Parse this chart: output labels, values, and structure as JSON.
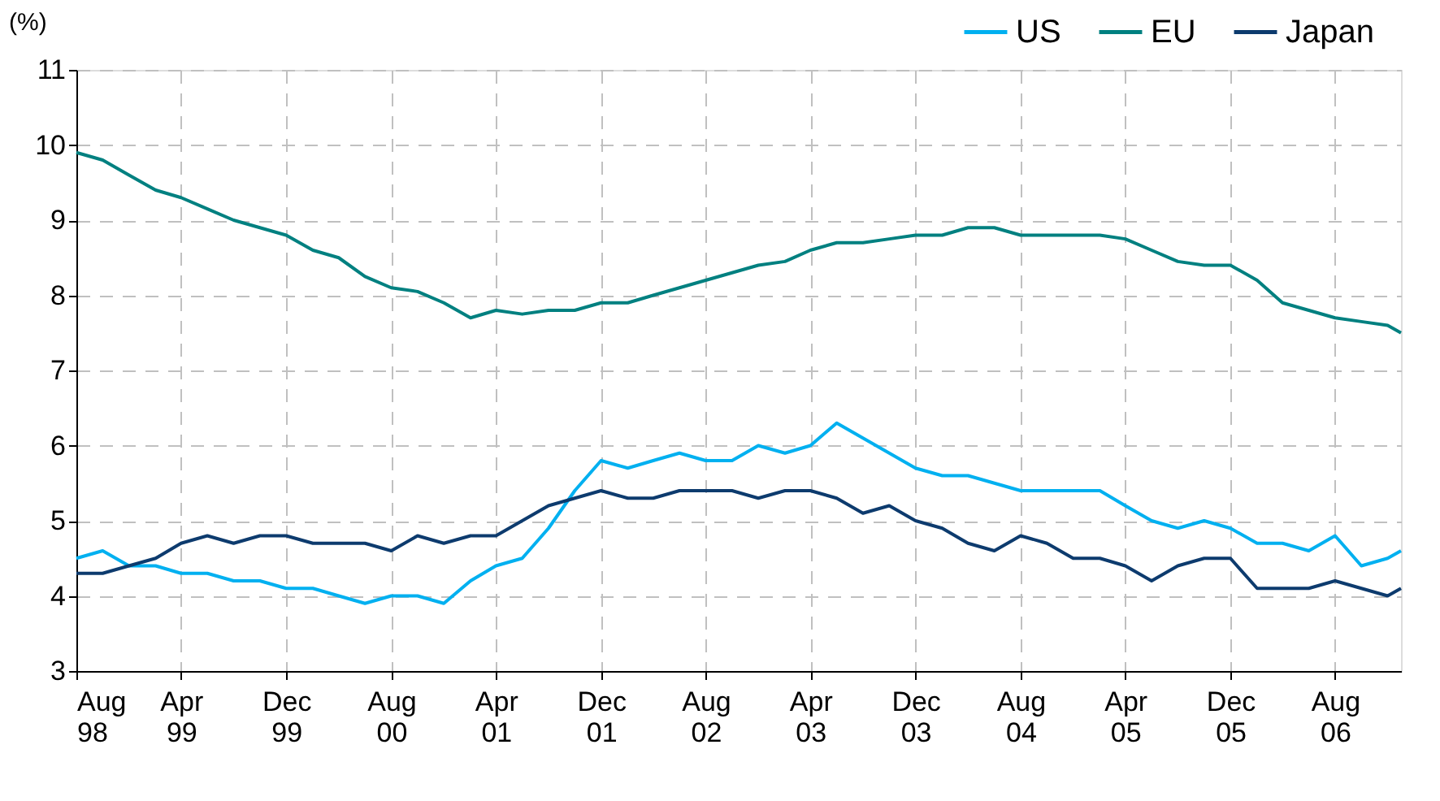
{
  "chart_data": {
    "type": "line",
    "ylabel": "(%)",
    "x": [
      "1998-08",
      "1998-10",
      "1998-12",
      "1999-02",
      "1999-04",
      "1999-06",
      "1999-08",
      "1999-10",
      "1999-12",
      "2000-02",
      "2000-04",
      "2000-06",
      "2000-08",
      "2000-10",
      "2000-12",
      "2001-02",
      "2001-04",
      "2001-06",
      "2001-08",
      "2001-10",
      "2001-12",
      "2002-02",
      "2002-04",
      "2002-06",
      "2002-08",
      "2002-10",
      "2002-12",
      "2003-02",
      "2003-04",
      "2003-06",
      "2003-08",
      "2003-10",
      "2003-12",
      "2004-02",
      "2004-04",
      "2004-06",
      "2004-08",
      "2004-10",
      "2004-12",
      "2005-02",
      "2005-04",
      "2005-06",
      "2005-08",
      "2005-10",
      "2005-12",
      "2006-02",
      "2006-04",
      "2006-06",
      "2006-08",
      "2006-10",
      "2006-12",
      "2007-01"
    ],
    "series": [
      {
        "name": "US",
        "color": "#00b0f0",
        "values": [
          4.5,
          4.6,
          4.4,
          4.4,
          4.3,
          4.3,
          4.2,
          4.2,
          4.1,
          4.1,
          4.0,
          3.9,
          4.0,
          4.0,
          3.9,
          4.2,
          4.4,
          4.5,
          4.9,
          5.4,
          5.8,
          5.7,
          5.8,
          5.9,
          5.8,
          5.8,
          6.0,
          5.9,
          6.0,
          6.3,
          6.1,
          5.9,
          5.7,
          5.6,
          5.6,
          5.5,
          5.4,
          5.4,
          5.4,
          5.4,
          5.2,
          5.0,
          4.9,
          5.0,
          4.9,
          4.7,
          4.7,
          4.6,
          4.8,
          4.4,
          4.5,
          4.6
        ]
      },
      {
        "name": "EU",
        "color": "#008080",
        "values": [
          9.9,
          9.8,
          9.6,
          9.4,
          9.3,
          9.15,
          9.0,
          8.9,
          8.8,
          8.6,
          8.5,
          8.25,
          8.1,
          8.05,
          7.9,
          7.7,
          7.8,
          7.75,
          7.8,
          7.8,
          7.9,
          7.9,
          8.0,
          8.1,
          8.2,
          8.3,
          8.4,
          8.45,
          8.6,
          8.7,
          8.7,
          8.75,
          8.8,
          8.8,
          8.9,
          8.9,
          8.8,
          8.8,
          8.8,
          8.8,
          8.75,
          8.6,
          8.45,
          8.4,
          8.4,
          8.2,
          7.9,
          7.8,
          7.7,
          7.65,
          7.6,
          7.5
        ]
      },
      {
        "name": "Japan",
        "color": "#0d3b6e",
        "values": [
          4.3,
          4.3,
          4.4,
          4.5,
          4.7,
          4.8,
          4.7,
          4.8,
          4.8,
          4.7,
          4.7,
          4.7,
          4.6,
          4.8,
          4.7,
          4.8,
          4.8,
          5.0,
          5.2,
          5.3,
          5.4,
          5.3,
          5.3,
          5.4,
          5.4,
          5.4,
          5.3,
          5.4,
          5.4,
          5.3,
          5.1,
          5.2,
          5.0,
          4.9,
          4.7,
          4.6,
          4.8,
          4.7,
          4.5,
          4.5,
          4.4,
          4.2,
          4.4,
          4.5,
          4.5,
          4.1,
          4.1,
          4.1,
          4.2,
          4.1,
          4.0,
          4.1
        ]
      }
    ],
    "xlim": [
      "1998-08",
      "2007-01"
    ],
    "xticks": [
      {
        "value": "1998-08",
        "label": "Aug 98"
      },
      {
        "value": "1999-04",
        "label": "Apr 99"
      },
      {
        "value": "1999-12",
        "label": "Dec 99"
      },
      {
        "value": "2000-08",
        "label": "Aug 00"
      },
      {
        "value": "2001-04",
        "label": "Apr 01"
      },
      {
        "value": "2001-12",
        "label": "Dec 01"
      },
      {
        "value": "2002-08",
        "label": "Aug 02"
      },
      {
        "value": "2003-04",
        "label": "Apr 03"
      },
      {
        "value": "2003-12",
        "label": "Dec 03"
      },
      {
        "value": "2004-08",
        "label": "Aug 04"
      },
      {
        "value": "2005-04",
        "label": "Apr 05"
      },
      {
        "value": "2005-12",
        "label": "Dec 05"
      },
      {
        "value": "2006-08",
        "label": "Aug 06"
      }
    ],
    "ylim": [
      3,
      11
    ],
    "yticks": [
      3,
      4,
      5,
      6,
      7,
      8,
      9,
      10,
      11
    ],
    "grid": true,
    "legend": "top right",
    "line_style": "solid",
    "marker": "none"
  }
}
